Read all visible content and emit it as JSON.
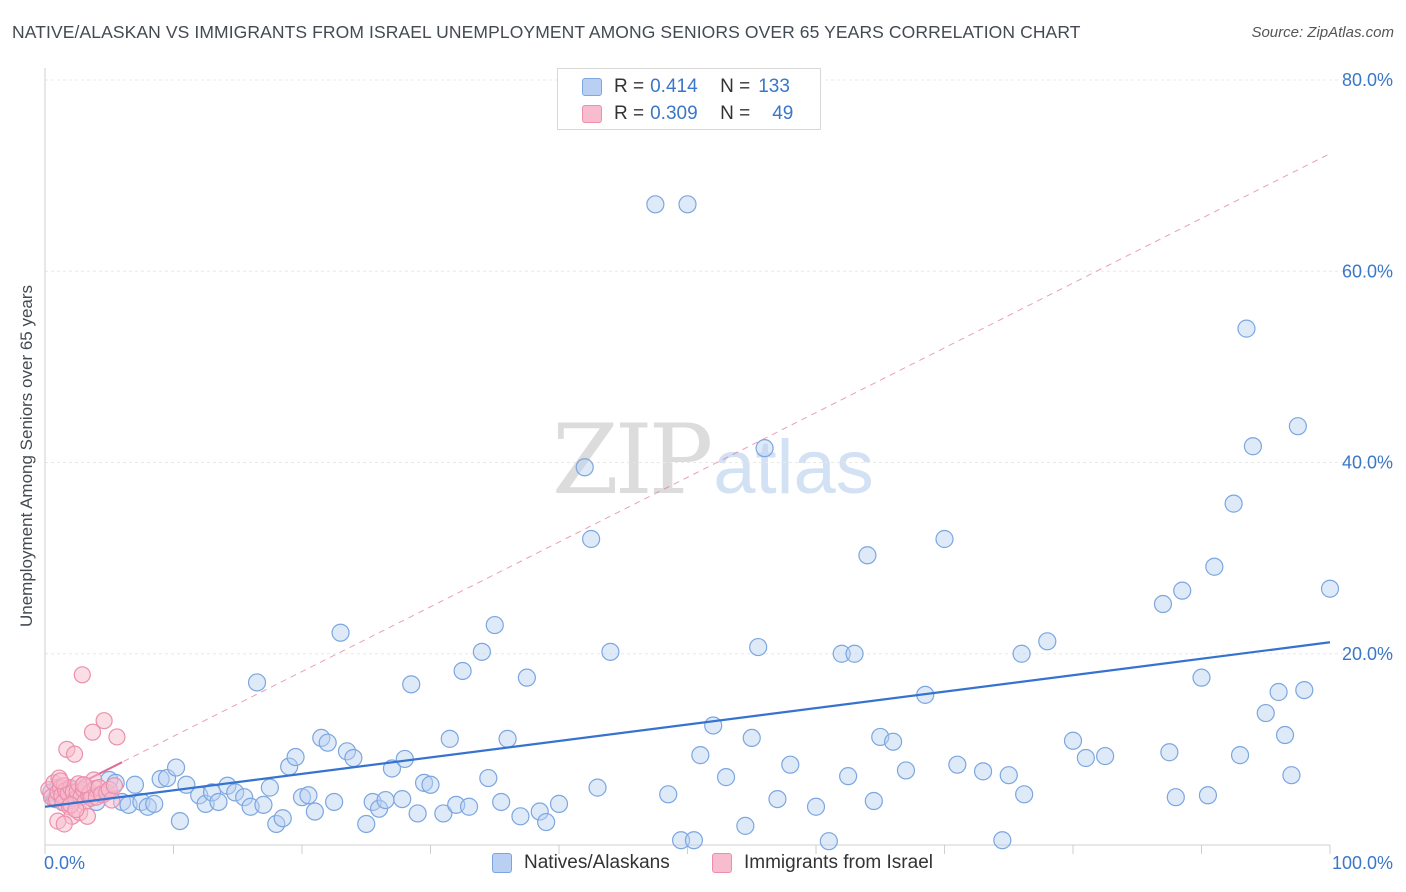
{
  "header": {
    "title": "NATIVE/ALASKAN VS IMMIGRANTS FROM ISRAEL UNEMPLOYMENT AMONG SENIORS OVER 65 YEARS CORRELATION CHART",
    "source": "Source: ZipAtlas.com"
  },
  "watermark": {
    "zip": "ZIP",
    "atlas": "atlas"
  },
  "legend_top": {
    "r_label": "R =",
    "n_label": "N =",
    "rows": [
      {
        "r": "0.414",
        "n": "133"
      },
      {
        "r": "0.309",
        "n": "49"
      }
    ]
  },
  "colors": {
    "blue_fill": "#b9d0f2",
    "blue_stroke": "#7ca6e0",
    "blue_line": "#3573cf",
    "pink_fill": "#f7bccd",
    "pink_stroke": "#ec8fac",
    "pink_line": "#e06b93",
    "axis_text": "#3a77c8",
    "grid": "#e8e8e8"
  },
  "chart_data": {
    "type": "scatter",
    "title": "NATIVE/ALASKAN VS IMMIGRANTS FROM ISRAEL UNEMPLOYMENT AMONG SENIORS OVER 65 YEARS CORRELATION CHART",
    "xlabel": "",
    "ylabel": "Unemployment Among Seniors over 65 years",
    "xlim": [
      0,
      100
    ],
    "ylim": [
      0,
      80
    ],
    "x_tick_labels": [
      "0.0%",
      "100.0%"
    ],
    "y_ticks": [
      20,
      40,
      60,
      80
    ],
    "y_tick_labels": [
      "20.0%",
      "40.0%",
      "60.0%",
      "80.0%"
    ],
    "grid": true,
    "legend": [
      "Natives/Alaskans",
      "Immigrants from Israel"
    ],
    "series": [
      {
        "name": "Natives/Alaskans",
        "r": 0.414,
        "n": 133,
        "trend": {
          "x": [
            0,
            100
          ],
          "y": [
            4.0,
            21.2
          ],
          "style": "solid"
        },
        "points": [
          [
            0.5,
            5.5
          ],
          [
            0.8,
            4.8
          ],
          [
            1.0,
            6.0
          ],
          [
            1.2,
            5.2
          ],
          [
            1.5,
            4.5
          ],
          [
            2.0,
            5.8
          ],
          [
            2.5,
            5.0
          ],
          [
            3.0,
            6.2
          ],
          [
            3.3,
            5.6
          ],
          [
            4.0,
            4.5
          ],
          [
            4.5,
            5.3
          ],
          [
            5.0,
            6.8
          ],
          [
            5.5,
            6.5
          ],
          [
            6.0,
            4.5
          ],
          [
            6.5,
            4.2
          ],
          [
            7.0,
            6.3
          ],
          [
            7.5,
            4.5
          ],
          [
            8.0,
            4.0
          ],
          [
            8.5,
            4.3
          ],
          [
            9.0,
            6.9
          ],
          [
            9.5,
            7.0
          ],
          [
            10.2,
            8.1
          ],
          [
            10.5,
            2.5
          ],
          [
            11.0,
            6.3
          ],
          [
            12.0,
            5.2
          ],
          [
            12.5,
            4.3
          ],
          [
            13.0,
            5.5
          ],
          [
            13.5,
            4.5
          ],
          [
            14.2,
            6.2
          ],
          [
            14.8,
            5.5
          ],
          [
            15.5,
            5.0
          ],
          [
            16.0,
            4.0
          ],
          [
            16.5,
            17.0
          ],
          [
            17.0,
            4.2
          ],
          [
            17.5,
            6.0
          ],
          [
            18.0,
            2.2
          ],
          [
            18.5,
            2.8
          ],
          [
            19.0,
            8.2
          ],
          [
            19.5,
            9.2
          ],
          [
            20.0,
            5.0
          ],
          [
            20.5,
            5.2
          ],
          [
            21.0,
            3.5
          ],
          [
            21.5,
            11.2
          ],
          [
            22.0,
            10.7
          ],
          [
            22.5,
            4.5
          ],
          [
            23.0,
            22.2
          ],
          [
            23.5,
            9.8
          ],
          [
            24.0,
            9.1
          ],
          [
            25.0,
            2.2
          ],
          [
            25.5,
            4.5
          ],
          [
            26.0,
            3.8
          ],
          [
            26.5,
            4.7
          ],
          [
            27.0,
            8.0
          ],
          [
            28.0,
            9.0
          ],
          [
            27.8,
            4.8
          ],
          [
            29.0,
            3.3
          ],
          [
            28.5,
            16.8
          ],
          [
            29.5,
            6.5
          ],
          [
            30.0,
            6.3
          ],
          [
            31.0,
            3.3
          ],
          [
            31.5,
            11.1
          ],
          [
            32.0,
            4.2
          ],
          [
            32.5,
            18.2
          ],
          [
            33.0,
            4.0
          ],
          [
            34.0,
            20.2
          ],
          [
            34.5,
            7.0
          ],
          [
            35.0,
            23.0
          ],
          [
            35.5,
            4.5
          ],
          [
            36.0,
            11.1
          ],
          [
            37.0,
            3.0
          ],
          [
            37.5,
            17.5
          ],
          [
            38.5,
            3.5
          ],
          [
            39.0,
            2.4
          ],
          [
            40.0,
            4.3
          ],
          [
            42.0,
            39.5
          ],
          [
            42.5,
            32.0
          ],
          [
            43.0,
            6.0
          ],
          [
            44.0,
            20.2
          ],
          [
            47.5,
            67.0
          ],
          [
            50.0,
            67.0
          ],
          [
            48.5,
            5.3
          ],
          [
            49.5,
            0.5
          ],
          [
            50.5,
            0.5
          ],
          [
            51.0,
            9.4
          ],
          [
            52.0,
            12.5
          ],
          [
            53.0,
            7.1
          ],
          [
            54.5,
            2.0
          ],
          [
            55.0,
            11.2
          ],
          [
            55.5,
            20.7
          ],
          [
            56.0,
            41.5
          ],
          [
            57.0,
            4.8
          ],
          [
            58.0,
            8.4
          ],
          [
            60.0,
            4.0
          ],
          [
            61.0,
            0.4
          ],
          [
            62.0,
            20.0
          ],
          [
            62.5,
            7.2
          ],
          [
            63.0,
            20.0
          ],
          [
            64.0,
            30.3
          ],
          [
            64.5,
            4.6
          ],
          [
            65.0,
            11.3
          ],
          [
            66.0,
            10.8
          ],
          [
            67.0,
            7.8
          ],
          [
            68.5,
            15.7
          ],
          [
            70.0,
            32.0
          ],
          [
            71.0,
            8.4
          ],
          [
            73.0,
            7.7
          ],
          [
            74.5,
            0.5
          ],
          [
            75.0,
            7.3
          ],
          [
            76.0,
            20.0
          ],
          [
            76.2,
            5.3
          ],
          [
            78.0,
            21.3
          ],
          [
            80.0,
            10.9
          ],
          [
            81.0,
            9.1
          ],
          [
            82.5,
            9.3
          ],
          [
            87.0,
            25.2
          ],
          [
            87.5,
            9.7
          ],
          [
            88.0,
            5.0
          ],
          [
            88.5,
            26.6
          ],
          [
            90.0,
            17.5
          ],
          [
            90.5,
            5.2
          ],
          [
            91.0,
            29.1
          ],
          [
            92.5,
            35.7
          ],
          [
            93.0,
            9.4
          ],
          [
            93.5,
            54.0
          ],
          [
            94.0,
            41.7
          ],
          [
            95.0,
            13.8
          ],
          [
            96.0,
            16.0
          ],
          [
            96.5,
            11.5
          ],
          [
            97.0,
            7.3
          ],
          [
            97.5,
            43.8
          ],
          [
            98.0,
            16.2
          ],
          [
            100.0,
            26.8
          ]
        ]
      },
      {
        "name": "Immigrants from Israel",
        "r": 0.309,
        "n": 49,
        "trend": {
          "x": [
            0,
            100
          ],
          "y": [
            4.6,
            72.3
          ],
          "solid_until_x": 6.0
        },
        "points": [
          [
            0.3,
            5.8
          ],
          [
            0.5,
            5.0
          ],
          [
            0.7,
            6.5
          ],
          [
            0.9,
            4.8
          ],
          [
            1.0,
            5.5
          ],
          [
            1.1,
            7.0
          ],
          [
            1.2,
            6.0
          ],
          [
            1.3,
            5.2
          ],
          [
            1.4,
            4.4
          ],
          [
            1.5,
            6.2
          ],
          [
            1.6,
            5.7
          ],
          [
            1.7,
            10.0
          ],
          [
            1.8,
            5.4
          ],
          [
            1.9,
            4.0
          ],
          [
            2.0,
            6.0
          ],
          [
            2.1,
            3.0
          ],
          [
            2.2,
            5.5
          ],
          [
            2.3,
            9.5
          ],
          [
            2.4,
            4.8
          ],
          [
            2.5,
            5.6
          ],
          [
            2.6,
            6.4
          ],
          [
            2.7,
            3.4
          ],
          [
            2.8,
            5.0
          ],
          [
            2.9,
            17.8
          ],
          [
            3.0,
            5.8
          ],
          [
            3.1,
            4.5
          ],
          [
            3.2,
            6.1
          ],
          [
            3.3,
            3.0
          ],
          [
            3.4,
            5.2
          ],
          [
            3.5,
            5.5
          ],
          [
            3.6,
            4.9
          ],
          [
            3.7,
            11.8
          ],
          [
            3.8,
            6.8
          ],
          [
            3.9,
            5.9
          ],
          [
            4.0,
            5.0
          ],
          [
            4.2,
            6.0
          ],
          [
            4.4,
            5.3
          ],
          [
            4.6,
            13.0
          ],
          [
            4.8,
            5.5
          ],
          [
            5.0,
            5.8
          ],
          [
            5.2,
            4.7
          ],
          [
            5.4,
            6.2
          ],
          [
            5.6,
            11.3
          ],
          [
            1.0,
            2.5
          ],
          [
            1.5,
            2.2
          ],
          [
            2.0,
            4.2
          ],
          [
            2.4,
            3.7
          ],
          [
            3.0,
            6.3
          ],
          [
            1.2,
            6.7
          ]
        ]
      }
    ]
  },
  "legend_bottom": [
    {
      "label": "Natives/Alaskans"
    },
    {
      "label": "Immigrants from Israel"
    }
  ]
}
